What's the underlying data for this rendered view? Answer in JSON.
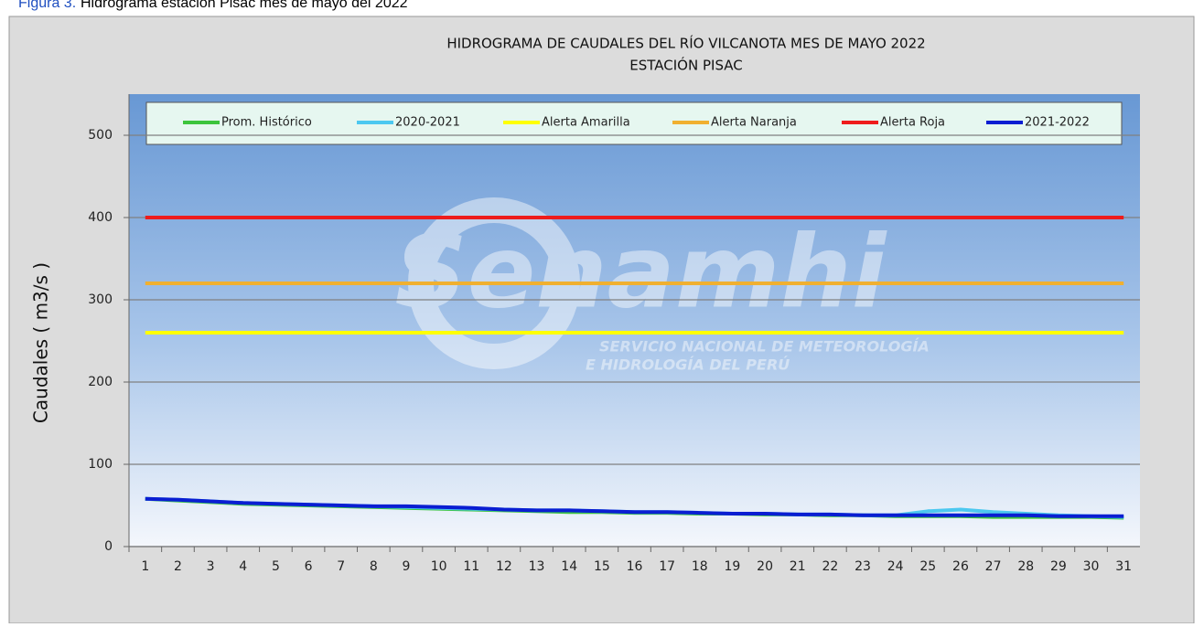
{
  "caption": {
    "label": "Figura 3.",
    "text": "Hidrograma estación Pisac mes de mayo del 2022"
  },
  "watermark": {
    "name": "Senamhi",
    "line1": "SERVICIO NACIONAL DE METEOROLOGÍA",
    "line2": "E HIDROLOGÍA DEL PERÚ"
  },
  "chart_data": {
    "type": "line",
    "title": "HIDROGRAMA DE CAUDALES DEL RÍO VILCANOTA MES DE MAYO 2022",
    "subtitle": "ESTACIÓN PISAC",
    "y_label": "Caudales ( m3/s )",
    "categories": [
      "1",
      "2",
      "3",
      "4",
      "5",
      "6",
      "7",
      "8",
      "9",
      "10",
      "11",
      "12",
      "13",
      "14",
      "15",
      "16",
      "17",
      "18",
      "19",
      "20",
      "21",
      "22",
      "23",
      "24",
      "25",
      "26",
      "27",
      "28",
      "29",
      "30",
      "31"
    ],
    "series": [
      {
        "name": "Prom. Histórico",
        "color": "#3cc43c",
        "values": [
          58,
          56,
          54,
          52,
          51,
          50,
          49,
          48,
          47,
          46,
          45,
          44,
          43,
          42,
          42,
          41,
          41,
          40,
          40,
          39,
          39,
          38,
          38,
          37,
          37,
          37,
          36,
          36,
          36,
          36,
          35
        ]
      },
      {
        "name": "2020-2021",
        "color": "#4cc8f0",
        "values": [
          58,
          57,
          55,
          53,
          52,
          51,
          50,
          49,
          48,
          47,
          46,
          45,
          44,
          44,
          43,
          42,
          42,
          41,
          40,
          40,
          39,
          39,
          38,
          38,
          43,
          45,
          42,
          40,
          38,
          37,
          36
        ]
      },
      {
        "name": "Alerta Amarilla",
        "color": "#ffff00",
        "values": [
          260,
          260,
          260,
          260,
          260,
          260,
          260,
          260,
          260,
          260,
          260,
          260,
          260,
          260,
          260,
          260,
          260,
          260,
          260,
          260,
          260,
          260,
          260,
          260,
          260,
          260,
          260,
          260,
          260,
          260,
          260
        ]
      },
      {
        "name": "Alerta Naranja",
        "color": "#f0b030",
        "values": [
          320,
          320,
          320,
          320,
          320,
          320,
          320,
          320,
          320,
          320,
          320,
          320,
          320,
          320,
          320,
          320,
          320,
          320,
          320,
          320,
          320,
          320,
          320,
          320,
          320,
          320,
          320,
          320,
          320,
          320,
          320
        ]
      },
      {
        "name": "Alerta Roja",
        "color": "#ee1c1c",
        "values": [
          400,
          400,
          400,
          400,
          400,
          400,
          400,
          400,
          400,
          400,
          400,
          400,
          400,
          400,
          400,
          400,
          400,
          400,
          400,
          400,
          400,
          400,
          400,
          400,
          400,
          400,
          400,
          400,
          400,
          400,
          400
        ]
      },
      {
        "name": "2021-2022",
        "color": "#0a1ed2",
        "values": [
          58,
          57,
          55,
          53,
          52,
          51,
          50,
          49,
          49,
          48,
          47,
          45,
          44,
          44,
          43,
          42,
          42,
          41,
          40,
          40,
          39,
          39,
          38,
          38,
          38,
          38,
          38,
          38,
          37,
          37,
          37
        ]
      }
    ],
    "ylim": [
      0,
      550
    ],
    "yticks": [
      0,
      100,
      200,
      300,
      400,
      500
    ],
    "grid": true,
    "legend": "top"
  }
}
